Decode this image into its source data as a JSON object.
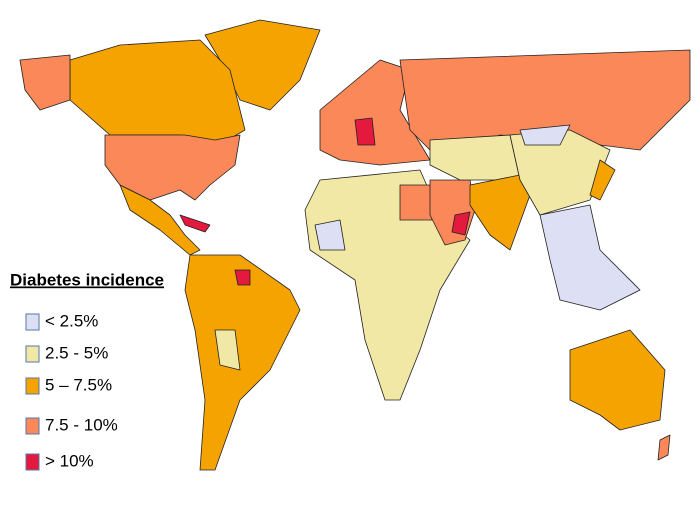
{
  "legend": {
    "title": "Diabetes incidence",
    "items": [
      {
        "label": "< 2.5%",
        "color": "#dde0f5"
      },
      {
        "label": "2.5 - 5%",
        "color": "#f0e8a4"
      },
      {
        "label": "5 – 7.5%",
        "color": "#f5a300"
      },
      {
        "label": "7.5 - 10%",
        "color": "#fa8858"
      },
      {
        "label": "> 10%",
        "color": "#e3193e"
      }
    ]
  }
}
